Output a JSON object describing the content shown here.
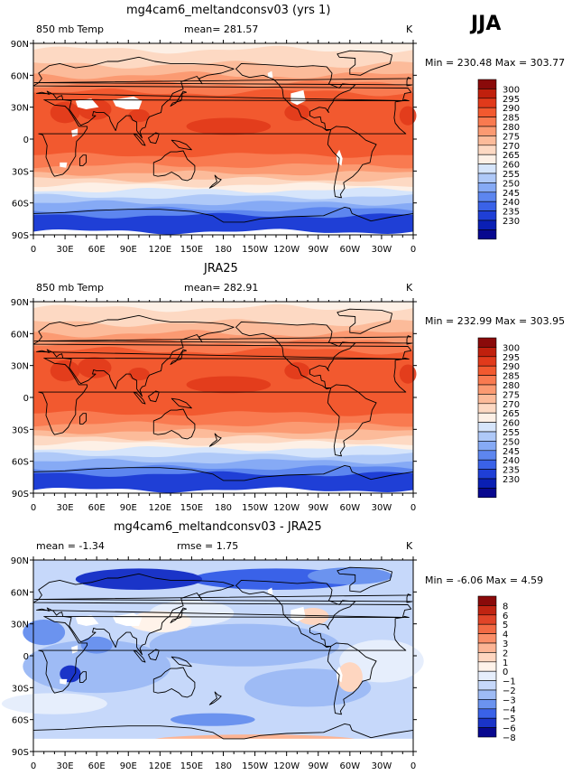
{
  "season": "JJA",
  "colors": {
    "abs": [
      "#08088f",
      "#0a1fb4",
      "#1f3fd6",
      "#3a62e8",
      "#5d86ef",
      "#86aaf5",
      "#afc9f8",
      "#d6e5fb",
      "#fdf0e6",
      "#fdd9c3",
      "#fcbb9a",
      "#fb9a72",
      "#f97a50",
      "#f2592f",
      "#e13a1b",
      "#c0200d",
      "#8a0a0a"
    ],
    "diff": [
      "#08088f",
      "#1a34c8",
      "#3a62e8",
      "#6b93ef",
      "#9ebbf5",
      "#c6d8fa",
      "#e6eefc",
      "#fff3ea",
      "#fed6c0",
      "#fcb494",
      "#fa8e68",
      "#f26a44",
      "#e04428",
      "#c02412",
      "#8a0a0a"
    ]
  },
  "maps": [
    {
      "title": "mg4cam6_meltandconsv03 (yrs 1)",
      "left_label": "850  mb Temp",
      "center_label": "mean=  281.57",
      "units": "K",
      "minmax": "Min =  230.48  Max =  303.77",
      "colorbar_labels": [
        "300",
        "295",
        "290",
        "285",
        "280",
        "275",
        "270",
        "265",
        "260",
        "255",
        "250",
        "245",
        "240",
        "235",
        "230"
      ],
      "palette": "abs",
      "mask_elevated": true
    },
    {
      "title": "JRA25",
      "left_label": "850  mb Temp",
      "center_label": "mean=  282.91",
      "units": "K",
      "minmax": "Min =  232.99  Max =  303.95",
      "colorbar_labels": [
        "300",
        "295",
        "290",
        "285",
        "280",
        "275",
        "270",
        "265",
        "260",
        "255",
        "250",
        "245",
        "240",
        "235",
        "230"
      ],
      "palette": "abs",
      "mask_elevated": false
    },
    {
      "title": "mg4cam6_meltandconsv03 - JRA25",
      "left_label": "mean =   -1.34",
      "center_label": "rmse =    1.75",
      "units": "K",
      "minmax": "Min =   -6.06  Max =    4.59",
      "colorbar_labels": [
        "8",
        "6",
        "5",
        "4",
        "3",
        "2",
        "1",
        "0",
        "−1",
        "−2",
        "−3",
        "−4",
        "−5",
        "−6",
        "−8"
      ],
      "palette": "diff",
      "mask_elevated": true
    }
  ],
  "lat_labels": [
    "90N",
    "60N",
    "30N",
    "0",
    "30S",
    "60S",
    "90S"
  ],
  "lon_labels": [
    "0",
    "30E",
    "60E",
    "90E",
    "120E",
    "150E",
    "180",
    "150W",
    "120W",
    "90W",
    "60W",
    "30W",
    "0"
  ]
}
